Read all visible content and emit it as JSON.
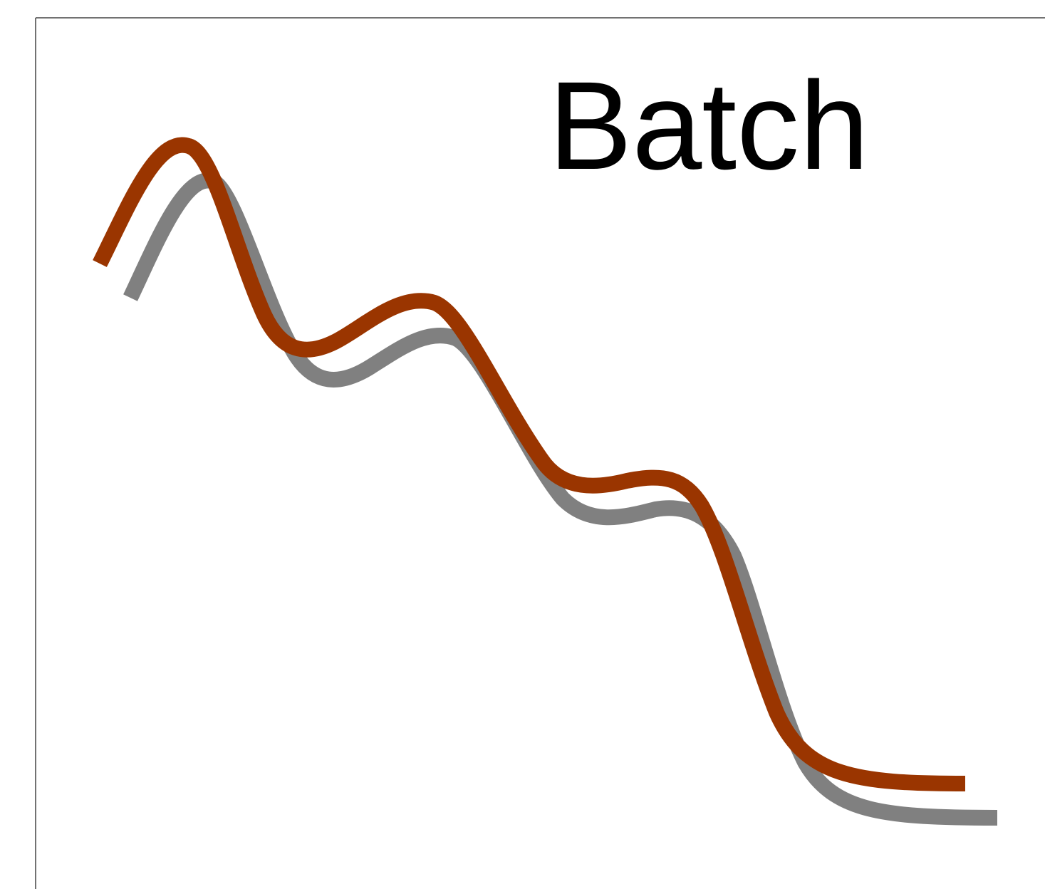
{
  "title": "Batch"
}
